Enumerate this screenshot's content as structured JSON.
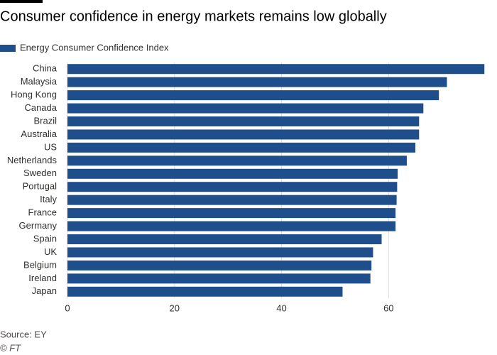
{
  "chart_data": {
    "type": "bar",
    "orientation": "horizontal",
    "title": "Consumer confidence in energy markets remains low globally",
    "categories": [
      "China",
      "Malaysia",
      "Hong Kong",
      "Canada",
      "Brazil",
      "Australia",
      "US",
      "Netherlands",
      "Sweden",
      "Portugal",
      "Italy",
      "France",
      "Germany",
      "Spain",
      "UK",
      "Belgium",
      "Ireland",
      "Japan"
    ],
    "series": [
      {
        "name": "Energy Consumer Confidence Index",
        "color": "#1f4e8c",
        "values": [
          77.9,
          70.9,
          69.4,
          66.5,
          65.7,
          65.7,
          65.0,
          63.4,
          61.7,
          61.6,
          61.5,
          61.3,
          61.3,
          58.7,
          57.1,
          56.8,
          56.6,
          51.4
        ]
      }
    ],
    "xlim": [
      0,
      78
    ],
    "xticks": [
      0,
      20,
      40,
      60
    ],
    "grid": true,
    "source": "Source: EY",
    "credit": "© FT"
  }
}
